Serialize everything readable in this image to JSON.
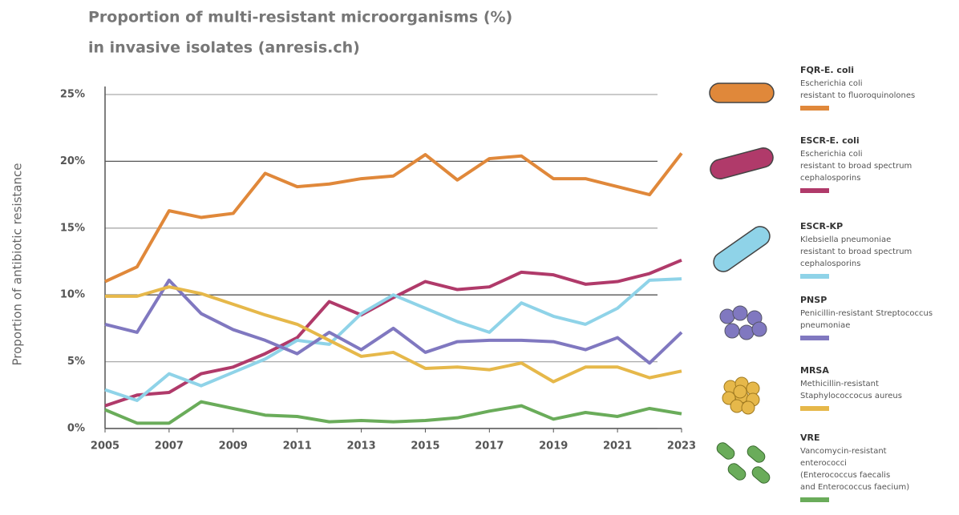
{
  "chart_data": {
    "type": "line",
    "title_lines": [
      "Proportion of multi-resistant microorganisms (%)",
      "in invasive isolates (anresis.ch)"
    ],
    "y_label": "Proportion of antibiotic resistance",
    "x": [
      2005,
      2006,
      2007,
      2008,
      2009,
      2010,
      2011,
      2012,
      2013,
      2014,
      2015,
      2016,
      2017,
      2018,
      2019,
      2020,
      2021,
      2022,
      2023
    ],
    "xlim": [
      2005,
      2023
    ],
    "xticks": [
      2005,
      2007,
      2009,
      2011,
      2013,
      2015,
      2017,
      2019,
      2021,
      2023
    ],
    "ylim": [
      0,
      25
    ],
    "yticks": [
      {
        "value": 0,
        "label": "0%"
      },
      {
        "value": 5,
        "label": "5%"
      },
      {
        "value": 10,
        "label": "10%"
      },
      {
        "value": 15,
        "label": "15%"
      },
      {
        "value": 20,
        "label": "20%"
      },
      {
        "value": 25,
        "label": "25%"
      }
    ],
    "grid": true,
    "series": [
      {
        "name": "FQR-E. coli",
        "color": "#e0883a",
        "description": [
          "Escherichia coli",
          "resistant to fluoroquinolones"
        ],
        "values": [
          11.0,
          12.1,
          16.3,
          15.8,
          16.1,
          19.1,
          18.1,
          18.3,
          18.7,
          18.9,
          20.5,
          18.6,
          20.2,
          20.4,
          18.7,
          18.7,
          18.1,
          17.5,
          20.6
        ]
      },
      {
        "name": "ESCR-E. coli",
        "color": "#b03a6a",
        "description": [
          "Escherichia coli",
          "resistant to broad spectrum",
          "cephalosporins"
        ],
        "values": [
          1.7,
          2.5,
          2.7,
          4.1,
          4.6,
          5.6,
          6.8,
          9.5,
          8.5,
          9.8,
          11.0,
          10.4,
          10.6,
          11.7,
          11.5,
          10.8,
          11.0,
          11.6,
          12.6
        ]
      },
      {
        "name": "ESCR-KP",
        "color": "#8fd3e8",
        "description": [
          "Klebsiella pneumoniae",
          "resistant to broad spectrum",
          "cephalosporins"
        ],
        "values": [
          2.9,
          2.1,
          4.1,
          3.2,
          4.2,
          5.2,
          6.6,
          6.3,
          8.6,
          10.0,
          9.0,
          8.0,
          7.2,
          9.4,
          8.4,
          7.8,
          9.0,
          11.1,
          11.2
        ]
      },
      {
        "name": "PNSP",
        "color": "#8078c0",
        "description": [
          "Penicillin-resistant Streptococcus",
          "pneumoniae"
        ],
        "values": [
          7.8,
          7.2,
          11.1,
          8.6,
          7.4,
          6.6,
          5.6,
          7.2,
          5.9,
          7.5,
          5.7,
          6.5,
          6.6,
          6.6,
          6.5,
          5.9,
          6.8,
          4.9,
          7.2
        ]
      },
      {
        "name": "MRSA",
        "color": "#e6b84a",
        "description": [
          "Methicillin-resistant",
          "Staphylococcocus aureus"
        ],
        "values": [
          9.9,
          9.9,
          10.6,
          10.1,
          9.3,
          8.5,
          7.8,
          6.6,
          5.4,
          5.7,
          4.5,
          4.6,
          4.4,
          4.9,
          3.5,
          4.6,
          4.6,
          3.8,
          4.3
        ]
      },
      {
        "name": "VRE",
        "color": "#6aac5a",
        "description": [
          "Vancomycin-resistant",
          "enterococci",
          "(Enterococcus faecalis",
          "and Enterococcus faecium)"
        ],
        "values": [
          1.4,
          0.4,
          0.4,
          2.0,
          1.5,
          1.0,
          0.9,
          0.5,
          0.6,
          0.5,
          0.6,
          0.8,
          1.3,
          1.7,
          0.7,
          1.2,
          0.9,
          1.5,
          1.1
        ]
      }
    ]
  }
}
